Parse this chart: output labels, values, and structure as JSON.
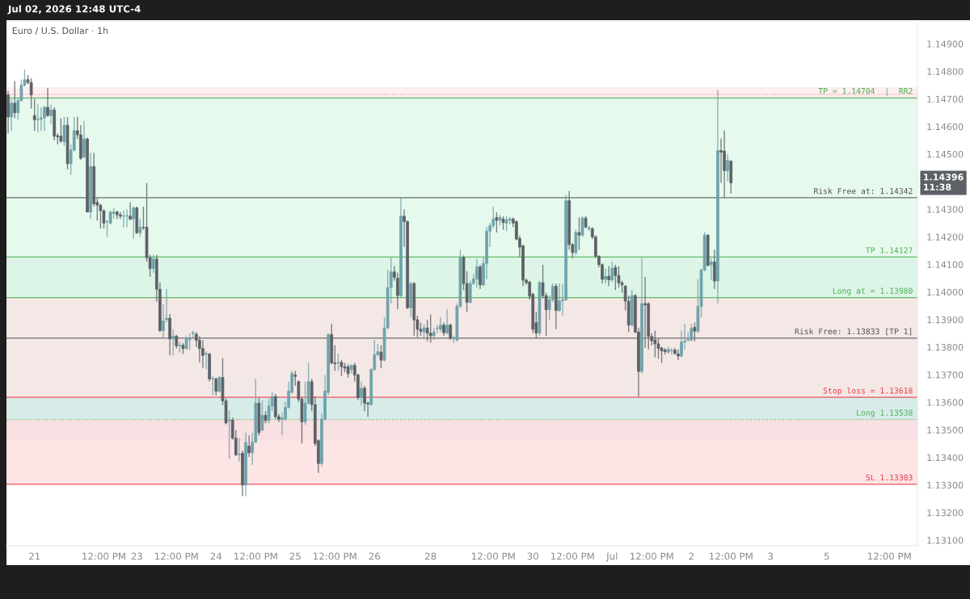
{
  "chart_data": {
    "type": "candlestick",
    "title": "Euro / U.S. Dollar · 1h",
    "annotations": [
      "Jul 02, 2026 12:48 UTC-4",
      "1.14396\n11:38"
    ],
    "categories": [
      null,
      null,
      null,
      null,
      null,
      null,
      null,
      null,
      "21",
      null,
      null,
      null,
      null,
      null,
      null,
      null,
      null,
      null,
      null,
      null,
      null,
      null,
      null,
      null,
      null,
      null,
      null,
      null,
      null,
      "12:00 PM",
      null,
      null,
      null,
      null,
      null,
      null,
      null,
      null,
      null,
      "23",
      null,
      null,
      null,
      null,
      null,
      null,
      null,
      null,
      null,
      null,
      null,
      "12:00 PM",
      null,
      null,
      null,
      null,
      null,
      null,
      null,
      null,
      null,
      null,
      null,
      "24",
      null,
      null,
      null,
      null,
      null,
      null,
      null,
      null,
      null,
      null,
      null,
      "12:00 PM",
      null,
      null,
      null,
      null,
      null,
      null,
      null,
      null,
      null,
      null,
      null,
      "25",
      null,
      null,
      null,
      null,
      null,
      null,
      null,
      null,
      null,
      null,
      null,
      "12:00 PM",
      null,
      null,
      null,
      null,
      null,
      null,
      null,
      null,
      null,
      null,
      null,
      "26",
      null,
      null,
      null,
      null,
      null,
      null,
      null,
      null,
      null,
      null,
      null,
      null,
      null,
      null,
      null,
      null,
      "28",
      null,
      null,
      null,
      null,
      null,
      null,
      null,
      null,
      null,
      null,
      null,
      null,
      null,
      null,
      null,
      null,
      null,
      null,
      "12:00 PM",
      null,
      null,
      null,
      null,
      null,
      null,
      null,
      null,
      null,
      null,
      null,
      "30",
      null,
      null,
      null,
      null,
      null,
      null,
      null,
      null,
      null,
      null,
      null,
      "12:00 PM",
      null,
      null,
      null,
      null,
      null,
      null,
      null,
      null,
      null,
      null,
      null,
      "Jul",
      null,
      null,
      null,
      null,
      null,
      null,
      null,
      null,
      null,
      null,
      null,
      "12:00 PM",
      null,
      null,
      null,
      null,
      null,
      null,
      null,
      null,
      null,
      null,
      null,
      "2",
      null,
      null,
      null,
      null,
      null,
      null,
      null,
      null,
      null,
      null,
      null,
      "12:00 PM",
      null,
      null,
      null,
      null,
      null,
      null,
      null,
      null,
      null,
      null,
      null,
      "3",
      null,
      null,
      null,
      null,
      null,
      null,
      null,
      null,
      null,
      null,
      null,
      null,
      null,
      null,
      null,
      null,
      "5",
      null,
      null,
      null,
      null,
      null,
      null,
      null,
      null,
      null,
      null,
      null,
      null,
      null,
      null,
      null,
      null,
      null,
      null,
      "12:00 PM",
      null,
      null,
      null,
      null,
      null,
      null,
      null,
      null
    ],
    "ohlc": [
      [
        1.14715,
        1.1473,
        1.14575,
        1.14635
      ],
      [
        1.14635,
        1.147,
        1.14585,
        1.14685
      ],
      [
        1.14685,
        1.14765,
        1.1463,
        1.1465
      ],
      [
        1.1465,
        1.14705,
        1.14625,
        1.14695
      ],
      [
        1.14695,
        1.1477,
        1.1469,
        1.1475
      ],
      [
        1.1475,
        1.14807,
        1.14745,
        1.1477
      ],
      [
        1.1477,
        1.14787,
        1.14753,
        1.1476
      ],
      [
        1.1476,
        1.14775,
        1.14665,
        1.14715
      ],
      [
        1.1464,
        1.147,
        1.14585,
        1.14625
      ],
      [
        1.14625,
        1.1468,
        1.1458,
        1.14627
      ],
      [
        1.14627,
        1.1467,
        1.14585,
        1.14632
      ],
      [
        1.14632,
        1.14675,
        1.14585,
        1.1467
      ],
      [
        1.1467,
        1.1474,
        1.14635,
        1.1464
      ],
      [
        1.1464,
        1.1468,
        1.1461,
        1.1466
      ],
      [
        1.1466,
        1.1467,
        1.1455,
        1.14565
      ],
      [
        1.14567,
        1.14575,
        1.14535,
        1.14563
      ],
      [
        1.14565,
        1.1463,
        1.1454,
        1.14547
      ],
      [
        1.14545,
        1.14635,
        1.1453,
        1.14605
      ],
      [
        1.14605,
        1.14635,
        1.14445,
        1.14465
      ],
      [
        1.14465,
        1.14535,
        1.14425,
        1.14515
      ],
      [
        1.14515,
        1.14635,
        1.1451,
        1.14585
      ],
      [
        1.14585,
        1.14635,
        1.14555,
        1.1457
      ],
      [
        1.1457,
        1.14605,
        1.1448,
        1.14485
      ],
      [
        1.1449,
        1.1462,
        1.14485,
        1.14555
      ],
      [
        1.14555,
        1.1456,
        1.1429,
        1.1429
      ],
      [
        1.1429,
        1.14505,
        1.14265,
        1.14455
      ],
      [
        1.14455,
        1.14505,
        1.1431,
        1.1432
      ],
      [
        1.14325,
        1.1434,
        1.1426,
        1.14315
      ],
      [
        1.14315,
        1.1432,
        1.1423,
        1.14295
      ],
      [
        1.14295,
        1.143,
        1.1423,
        1.1425
      ],
      [
        1.14255,
        1.1426,
        1.142,
        1.14257
      ],
      [
        1.1425,
        1.14295,
        1.14245,
        1.1429
      ],
      [
        1.14285,
        1.14305,
        1.14265,
        1.1429
      ],
      [
        1.1429,
        1.14295,
        1.14265,
        1.1428
      ],
      [
        1.1428,
        1.1429,
        1.14265,
        1.14275
      ],
      [
        1.14275,
        1.14295,
        1.14235,
        1.14276
      ],
      [
        1.14276,
        1.143,
        1.14235,
        1.14277
      ],
      [
        1.14275,
        1.14325,
        1.1426,
        1.14265
      ],
      [
        1.14265,
        1.1431,
        1.14195,
        1.14305
      ],
      [
        1.14305,
        1.1431,
        1.1421,
        1.14215
      ],
      [
        1.14215,
        1.14265,
        1.142,
        1.14235
      ],
      [
        1.14235,
        1.1431,
        1.14225,
        1.14233
      ],
      [
        1.14235,
        1.14395,
        1.1411,
        1.14125
      ],
      [
        1.14125,
        1.14135,
        1.14055,
        1.14085
      ],
      [
        1.14085,
        1.14135,
        1.1407,
        1.1412
      ],
      [
        1.1412,
        1.14135,
        1.13965,
        1.1401
      ],
      [
        1.1401,
        1.14035,
        1.13855,
        1.1386
      ],
      [
        1.1386,
        1.13955,
        1.13835,
        1.13895
      ],
      [
        1.139,
        1.1401,
        1.1389,
        1.13905
      ],
      [
        1.13905,
        1.1392,
        1.1377,
        1.1383
      ],
      [
        1.1383,
        1.13865,
        1.1377,
        1.1384
      ],
      [
        1.1384,
        1.13845,
        1.13795,
        1.13805
      ],
      [
        1.13805,
        1.1382,
        1.1378,
        1.13807
      ],
      [
        1.13807,
        1.13815,
        1.13775,
        1.13795
      ],
      [
        1.13795,
        1.1384,
        1.1379,
        1.1383
      ],
      [
        1.13827,
        1.1385,
        1.1379,
        1.13835
      ],
      [
        1.1385,
        1.1386,
        1.13835,
        1.13853
      ],
      [
        1.13847,
        1.13855,
        1.138,
        1.13825
      ],
      [
        1.13825,
        1.1384,
        1.13745,
        1.13795
      ],
      [
        1.13795,
        1.13825,
        1.13725,
        1.1377
      ],
      [
        1.13775,
        1.13785,
        1.1372,
        1.13777
      ],
      [
        1.13775,
        1.1378,
        1.13675,
        1.13685
      ],
      [
        1.13685,
        1.13695,
        1.13625,
        1.13687
      ],
      [
        1.13685,
        1.1369,
        1.13625,
        1.1364
      ],
      [
        1.1364,
        1.13695,
        1.13635,
        1.1369
      ],
      [
        1.1369,
        1.1376,
        1.1359,
        1.13605
      ],
      [
        1.13605,
        1.13615,
        1.1352,
        1.13525
      ],
      [
        1.13533,
        1.1357,
        1.13395,
        1.13537
      ],
      [
        1.13535,
        1.13545,
        1.13465,
        1.1347
      ],
      [
        1.1347,
        1.135,
        1.13405,
        1.1341
      ],
      [
        1.1341,
        1.1347,
        1.13385,
        1.13412
      ],
      [
        1.13415,
        1.13425,
        1.1326,
        1.133
      ],
      [
        1.133,
        1.1349,
        1.1326,
        1.13455
      ],
      [
        1.13441,
        1.1348,
        1.13402,
        1.13417
      ],
      [
        1.13417,
        1.1349,
        1.13373,
        1.13456
      ],
      [
        1.13456,
        1.13685,
        1.13451,
        1.13597
      ],
      [
        1.13597,
        1.13616,
        1.1348,
        1.1349
      ],
      [
        1.135,
        1.13607,
        1.13495,
        1.13553
      ],
      [
        1.13553,
        1.13568,
        1.13524,
        1.13534
      ],
      [
        1.13534,
        1.13612,
        1.13524,
        1.13587
      ],
      [
        1.13587,
        1.13636,
        1.13568,
        1.13621
      ],
      [
        1.13621,
        1.13631,
        1.13539,
        1.13548
      ],
      [
        1.13548,
        1.13558,
        1.13529,
        1.13539
      ],
      [
        1.13539,
        1.13563,
        1.1348,
        1.13543
      ],
      [
        1.13539,
        1.13602,
        1.13534,
        1.13582
      ],
      [
        1.13582,
        1.13675,
        1.13577,
        1.13641
      ],
      [
        1.13636,
        1.13714,
        1.13631,
        1.13704
      ],
      [
        1.13699,
        1.13714,
        1.1366,
        1.13694
      ],
      [
        1.13675,
        1.1368,
        1.13602,
        1.13612
      ],
      [
        1.13612,
        1.13617,
        1.13451,
        1.13529
      ],
      [
        1.13529,
        1.13675,
        1.13519,
        1.13597
      ],
      [
        1.13597,
        1.13743,
        1.13592,
        1.13675
      ],
      [
        1.13675,
        1.13685,
        1.13568,
        1.13592
      ],
      [
        1.13592,
        1.13621,
        1.13441,
        1.13451
      ],
      [
        1.13461,
        1.13466,
        1.13344,
        1.13378
      ],
      [
        1.13378,
        1.13558,
        1.13368,
        1.13539
      ],
      [
        1.13539,
        1.13699,
        1.13534,
        1.13641
      ],
      [
        1.13636,
        1.13851,
        1.13626,
        1.13846
      ],
      [
        1.13846,
        1.13885,
        1.13738,
        1.13743
      ],
      [
        1.13743,
        1.13807,
        1.13714,
        1.1374
      ],
      [
        1.13743,
        1.13777,
        1.13714,
        1.13745
      ],
      [
        1.13745,
        1.13753,
        1.13695,
        1.13729
      ],
      [
        1.13729,
        1.13743,
        1.13709,
        1.13724
      ],
      [
        1.13729,
        1.13738,
        1.1369,
        1.13704
      ],
      [
        1.13719,
        1.13738,
        1.13704,
        1.13734
      ],
      [
        1.13734,
        1.13743,
        1.13675,
        1.13699
      ],
      [
        1.13699,
        1.13704,
        1.13607,
        1.13617
      ],
      [
        1.13617,
        1.13675,
        1.13588,
        1.13651
      ],
      [
        1.13651,
        1.1366,
        1.13568,
        1.13597
      ],
      [
        1.13597,
        1.13602,
        1.13548,
        1.13594
      ],
      [
        1.13592,
        1.13724,
        1.13587,
        1.13719
      ],
      [
        1.13719,
        1.13826,
        1.13714,
        1.13773
      ],
      [
        1.13773,
        1.13812,
        1.13768,
        1.13784
      ],
      [
        1.13782,
        1.13807,
        1.13724,
        1.13753
      ],
      [
        1.13753,
        1.13909,
        1.13748,
        1.1387
      ],
      [
        1.1387,
        1.1408,
        1.13865,
        1.14016
      ],
      [
        1.14016,
        1.14124,
        1.13958,
        1.14073
      ],
      [
        1.14073,
        1.14094,
        1.14041,
        1.14053
      ],
      [
        1.1405,
        1.1407,
        1.13938,
        1.13987
      ],
      [
        1.13987,
        1.14343,
        1.13982,
        1.14275
      ],
      [
        1.14275,
        1.14299,
        1.14163,
        1.14255
      ],
      [
        1.14255,
        1.1426,
        1.13938,
        1.13943
      ],
      [
        1.13943,
        1.14036,
        1.13909,
        1.14031
      ],
      [
        1.14031,
        1.14036,
        1.13841,
        1.13899
      ],
      [
        1.13899,
        1.13914,
        1.13836,
        1.13865
      ],
      [
        1.13865,
        1.13889,
        1.13841,
        1.13858
      ],
      [
        1.13855,
        1.13884,
        1.13831,
        1.1387
      ],
      [
        1.1387,
        1.13899,
        1.13821,
        1.13851
      ],
      [
        1.13851,
        1.13919,
        1.13816,
        1.13841
      ],
      [
        1.13841,
        1.1387,
        1.13826,
        1.13855
      ],
      [
        1.13868,
        1.1388,
        1.13851,
        1.1387
      ],
      [
        1.13865,
        1.13909,
        1.13855,
        1.1388
      ],
      [
        1.1388,
        1.1389,
        1.13841,
        1.13852
      ],
      [
        1.13852,
        1.13938,
        1.13846,
        1.1388
      ],
      [
        1.1388,
        1.13885,
        1.13826,
        1.13833
      ],
      [
        1.13831,
        1.13841,
        1.13816,
        1.13833
      ],
      [
        1.13826,
        1.13958,
        1.13821,
        1.13948
      ],
      [
        1.13948,
        1.14153,
        1.13943,
        1.14125
      ],
      [
        1.14125,
        1.14133,
        1.14007,
        1.14031
      ],
      [
        1.14031,
        1.14075,
        1.13929,
        1.13963
      ],
      [
        1.13963,
        1.14041,
        1.13958,
        1.14031
      ],
      [
        1.14031,
        1.14065,
        1.14026,
        1.14047
      ],
      [
        1.14047,
        1.14119,
        1.14016,
        1.14091
      ],
      [
        1.14091,
        1.14099,
        1.14011,
        1.14026
      ],
      [
        1.14026,
        1.14124,
        1.14021,
        1.14104
      ],
      [
        1.14104,
        1.14236,
        1.14046,
        1.14221
      ],
      [
        1.14221,
        1.1425,
        1.14163,
        1.14241
      ],
      [
        1.14241,
        1.14309,
        1.14231,
        1.14265
      ],
      [
        1.1427,
        1.14289,
        1.14216,
        1.1426
      ],
      [
        1.1426,
        1.1428,
        1.14241,
        1.1427
      ],
      [
        1.14265,
        1.14275,
        1.14226,
        1.14252
      ],
      [
        1.1425,
        1.14275,
        1.14221,
        1.14262
      ],
      [
        1.1426,
        1.14272,
        1.14245,
        1.14265
      ],
      [
        1.14265,
        1.1427,
        1.14236,
        1.1425
      ],
      [
        1.14255,
        1.1426,
        1.14187,
        1.14192
      ],
      [
        1.14194,
        1.14206,
        1.14128,
        1.14163
      ],
      [
        1.14167,
        1.14172,
        1.14021,
        1.14043
      ],
      [
        1.14043,
        1.1405,
        1.14026,
        1.14034
      ],
      [
        1.14036,
        1.14041,
        1.13972,
        1.13985
      ],
      [
        1.13992,
        1.13997,
        1.13851,
        1.13865
      ],
      [
        1.13889,
        1.13929,
        1.13831,
        1.13851
      ],
      [
        1.13851,
        1.14041,
        1.13841,
        1.14034
      ],
      [
        1.14034,
        1.14099,
        1.13977,
        1.13987
      ],
      [
        1.13987,
        1.13997,
        1.13841,
        1.13936
      ],
      [
        1.13936,
        1.13987,
        1.13899,
        1.13972
      ],
      [
        1.13972,
        1.14031,
        1.13963,
        1.14021
      ],
      [
        1.14021,
        1.14031,
        1.13865,
        1.13933
      ],
      [
        1.13933,
        1.14031,
        1.13929,
        1.13968
      ],
      [
        1.13968,
        1.14031,
        1.13914,
        1.13972
      ],
      [
        1.13972,
        1.14351,
        1.13968,
        1.14331
      ],
      [
        1.14331,
        1.14367,
        1.14153,
        1.14172
      ],
      [
        1.14172,
        1.14177,
        1.14124,
        1.14143
      ],
      [
        1.14143,
        1.14226,
        1.14133,
        1.14216
      ],
      [
        1.14216,
        1.1427,
        1.14153,
        1.14206
      ],
      [
        1.14206,
        1.14275,
        1.14201,
        1.14268
      ],
      [
        1.14268,
        1.14275,
        1.14231,
        1.14236
      ],
      [
        1.14229,
        1.14241,
        1.14221,
        1.14233
      ],
      [
        1.14229,
        1.14236,
        1.14192,
        1.142
      ],
      [
        1.142,
        1.14206,
        1.14124,
        1.1413
      ],
      [
        1.1413,
        1.14133,
        1.14089,
        1.14099
      ],
      [
        1.14099,
        1.14104,
        1.14031,
        1.14046
      ],
      [
        1.14046,
        1.14085,
        1.14031,
        1.14057
      ],
      [
        1.14057,
        1.14094,
        1.14021,
        1.14044
      ],
      [
        1.14044,
        1.14109,
        1.14036,
        1.14086
      ],
      [
        1.14089,
        1.14099,
        1.14007,
        1.1406
      ],
      [
        1.1406,
        1.14094,
        1.14016,
        1.14033
      ],
      [
        1.14033,
        1.14041,
        1.13997,
        1.14026
      ],
      [
        1.14021,
        1.14026,
        1.13933,
        1.13967
      ],
      [
        1.13967,
        1.13987,
        1.13855,
        1.1388
      ],
      [
        1.1388,
        1.14007,
        1.13875,
        1.13987
      ],
      [
        1.13987,
        1.13992,
        1.13851,
        1.13855
      ],
      [
        1.13855,
        1.1387,
        1.13621,
        1.13712
      ],
      [
        1.13712,
        1.14124,
        1.13704,
        1.13958
      ],
      [
        1.13958,
        1.14055,
        1.13797,
        1.13953
      ],
      [
        1.13958,
        1.13963,
        1.13792,
        1.13839
      ],
      [
        1.13839,
        1.13851,
        1.13807,
        1.13823
      ],
      [
        1.13826,
        1.1386,
        1.13763,
        1.13812
      ],
      [
        1.13812,
        1.13831,
        1.13758,
        1.13795
      ],
      [
        1.13797,
        1.13802,
        1.13743,
        1.13787
      ],
      [
        1.1379,
        1.13797,
        1.13773,
        1.13784
      ],
      [
        1.13782,
        1.13802,
        1.13777,
        1.13792
      ],
      [
        1.13787,
        1.13797,
        1.13773,
        1.13788
      ],
      [
        1.1379,
        1.13797,
        1.13773,
        1.13777
      ],
      [
        1.13775,
        1.13792,
        1.13753,
        1.13768
      ],
      [
        1.13768,
        1.1386,
        1.13763,
        1.13819
      ],
      [
        1.13819,
        1.13885,
        1.13792,
        1.13823
      ],
      [
        1.13826,
        1.13855,
        1.13821,
        1.13827
      ],
      [
        1.13826,
        1.13885,
        1.13821,
        1.13868
      ],
      [
        1.13872,
        1.1389,
        1.13821,
        1.13858
      ],
      [
        1.13858,
        1.14046,
        1.13851,
        1.13948
      ],
      [
        1.13948,
        1.14085,
        1.13909,
        1.1408
      ],
      [
        1.1408,
        1.14216,
        1.14075,
        1.14206
      ],
      [
        1.14206,
        1.14211,
        1.14094,
        1.14096
      ],
      [
        1.14099,
        1.14123,
        1.14045,
        1.14109
      ],
      [
        1.14109,
        1.14153,
        1.14011,
        1.1404
      ],
      [
        1.1404,
        1.14733,
        1.13958,
        1.14513
      ],
      [
        1.14513,
        1.14557,
        1.14396,
        1.14507
      ],
      [
        1.14511,
        1.14586,
        1.14343,
        1.1444
      ],
      [
        1.1444,
        1.14499,
        1.14401,
        1.14477
      ],
      [
        1.14474,
        1.14479,
        1.14357,
        1.14396
      ],
      null,
      null,
      null,
      null,
      null,
      null,
      null,
      null,
      null,
      null,
      null,
      null,
      null,
      null,
      null,
      null,
      null,
      null,
      null,
      null,
      null,
      null,
      null,
      null,
      null,
      null,
      null,
      null,
      null,
      null,
      null,
      null,
      null,
      null,
      null,
      null,
      null,
      null,
      null,
      null,
      null,
      null,
      null,
      null,
      null,
      null,
      null,
      null,
      null,
      null,
      null,
      null,
      null,
      null,
      null,
      null
    ],
    "colors": [
      "#5d6166",
      "#6fa3ab",
      "#5d6166",
      "#6fa3ab",
      "#6fa3ab",
      "#6fa3ab",
      "#5d6166",
      "#5d6166",
      "#5d6166",
      "#6fa3ab",
      "#6fa3ab",
      "#6fa3ab",
      "#5d6166",
      "#6fa3ab",
      "#5d6166",
      "#5d6166",
      "#5d6166",
      "#6fa3ab",
      "#5d6166",
      "#6fa3ab",
      "#6fa3ab",
      "#5d6166",
      "#5d6166",
      "#6fa3ab",
      "#5d6166",
      "#6fa3ab",
      "#5d6166",
      "#5d6166",
      "#5d6166",
      "#5d6166",
      "#6fa3ab",
      "#6fa3ab",
      "#6fa3ab",
      "#5d6166",
      "#5d6166",
      "#6fa3ab",
      "#6fa3ab",
      "#5d6166",
      "#6fa3ab",
      "#5d6166",
      "#6fa3ab",
      "#5d6166",
      "#5d6166",
      "#5d6166",
      "#6fa3ab",
      "#5d6166",
      "#5d6166",
      "#6fa3ab",
      "#6fa3ab",
      "#5d6166",
      "#6fa3ab",
      "#5d6166",
      "#6fa3ab",
      "#5d6166",
      "#6fa3ab",
      "#6fa3ab",
      "#6fa3ab",
      "#5d6166",
      "#5d6166",
      "#5d6166",
      "#6fa3ab",
      "#5d6166",
      "#6fa3ab",
      "#5d6166",
      "#6fa3ab",
      "#5d6166",
      "#5d6166",
      "#6fa3ab",
      "#5d6166",
      "#5d6166",
      "#6fa3ab",
      "#5d6166",
      "#6fa3ab",
      "#5d6166",
      "#6fa3ab",
      "#6fa3ab",
      "#5d6166",
      "#6fa3ab",
      "#5d6166",
      "#6fa3ab",
      "#6fa3ab",
      "#5d6166",
      "#5d6166",
      "#6fa3ab",
      "#6fa3ab",
      "#6fa3ab",
      "#6fa3ab",
      "#5d6166",
      "#5d6166",
      "#5d6166",
      "#6fa3ab",
      "#6fa3ab",
      "#5d6166",
      "#5d6166",
      "#5d6166",
      "#6fa3ab",
      "#6fa3ab",
      "#6fa3ab",
      "#5d6166",
      "#5d6166",
      "#6fa3ab",
      "#5d6166",
      "#5d6166",
      "#5d6166",
      "#6fa3ab",
      "#5d6166",
      "#5d6166",
      "#6fa3ab",
      "#5d6166",
      "#5d6166",
      "#6fa3ab",
      "#6fa3ab",
      "#6fa3ab",
      "#5d6166",
      "#6fa3ab",
      "#6fa3ab",
      "#6fa3ab",
      "#5d6166",
      "#5d6166",
      "#6fa3ab",
      "#5d6166",
      "#5d6166",
      "#6fa3ab",
      "#5d6166",
      "#5d6166",
      "#5d6166",
      "#6fa3ab",
      "#5d6166",
      "#5d6166",
      "#6fa3ab",
      "#6fa3ab",
      "#6fa3ab",
      "#5d6166",
      "#6fa3ab",
      "#5d6166",
      "#6fa3ab",
      "#6fa3ab",
      "#6fa3ab",
      "#5d6166",
      "#5d6166",
      "#6fa3ab",
      "#6fa3ab",
      "#6fa3ab",
      "#5d6166",
      "#6fa3ab",
      "#6fa3ab",
      "#6fa3ab",
      "#6fa3ab",
      "#5d6166",
      "#6fa3ab",
      "#5d6166",
      "#6fa3ab",
      "#6fa3ab",
      "#5d6166",
      "#5d6166",
      "#5d6166",
      "#5d6166",
      "#5d6166",
      "#5d6166",
      "#5d6166",
      "#5d6166",
      "#6fa3ab",
      "#5d6166",
      "#5d6166",
      "#6fa3ab",
      "#6fa3ab",
      "#5d6166",
      "#6fa3ab",
      "#6fa3ab",
      "#6fa3ab",
      "#5d6166",
      "#5d6166",
      "#6fa3ab",
      "#5d6166",
      "#6fa3ab",
      "#5d6166",
      "#6fa3ab",
      "#5d6166",
      "#5d6166",
      "#5d6166",
      "#5d6166",
      "#6fa3ab",
      "#5d6166",
      "#6fa3ab",
      "#5d6166",
      "#5d6166",
      "#5d6166",
      "#5d6166",
      "#5d6166",
      "#6fa3ab",
      "#5d6166",
      "#5d6166",
      "#6fa3ab",
      "#5d6166",
      "#5d6166",
      "#5d6166",
      "#5d6166",
      "#5d6166",
      "#5d6166",
      "#5d6166",
      "#6fa3ab",
      "#6fa3ab",
      "#5d6166",
      "#5d6166",
      "#6fa3ab",
      "#6fa3ab",
      "#6fa3ab",
      "#6fa3ab",
      "#5d6166",
      "#6fa3ab",
      "#6fa3ab",
      "#6fa3ab",
      "#5d6166",
      "#6fa3ab",
      "#5d6166",
      "#6fa3ab",
      "#5d6166",
      "#5d6166",
      "#6fa3ab",
      "#5d6166",
      null,
      null,
      null,
      null,
      null,
      null,
      null,
      null,
      null,
      null,
      null,
      null,
      null,
      null,
      null,
      null,
      null,
      null,
      null,
      null,
      null,
      null,
      null,
      null,
      null,
      null,
      null,
      null,
      null,
      null,
      null,
      null,
      null,
      null,
      null,
      null,
      null,
      null,
      null,
      null,
      null,
      null,
      null,
      null,
      null,
      null,
      null,
      null,
      null,
      null,
      null,
      null,
      null,
      null,
      null,
      null
    ],
    "ylim": [
      1.1308,
      1.1498
    ],
    "yticks": [
      {
        "value": 1.131,
        "label": "1.13100"
      },
      {
        "value": 1.132,
        "label": "1.13200"
      },
      {
        "value": 1.133,
        "label": "1.13300"
      },
      {
        "value": 1.134,
        "label": "1.13400"
      },
      {
        "value": 1.135,
        "label": "1.13500"
      },
      {
        "value": 1.136,
        "label": "1.13600"
      },
      {
        "value": 1.137,
        "label": "1.13700"
      },
      {
        "value": 1.138,
        "label": "1.13800"
      },
      {
        "value": 1.139,
        "label": "1.13900"
      },
      {
        "value": 1.14,
        "label": "1.14000"
      },
      {
        "value": 1.141,
        "label": "1.14100"
      },
      {
        "value": 1.142,
        "label": "1.14200"
      },
      {
        "value": 1.143,
        "label": "1.14300"
      },
      {
        "value": 1.145,
        "label": "1.14500"
      },
      {
        "value": 1.146,
        "label": "1.14600"
      },
      {
        "value": 1.147,
        "label": "1.14700"
      },
      {
        "value": 1.148,
        "label": "1.14800"
      },
      {
        "value": 1.149,
        "label": "1.14900"
      }
    ],
    "bands": [
      {
        "axis": "y",
        "from": 1.14694,
        "to": 1.14743,
        "color": "#fde7ea"
      },
      {
        "axis": "y",
        "from": 1.1346,
        "to": 1.13623,
        "color": "#e8ecf5"
      },
      {
        "axis": "y",
        "from": 1.13538,
        "to": 1.14127,
        "color": "#cdeae2"
      },
      {
        "axis": "y",
        "from": 1.13303,
        "to": 1.13538,
        "color": "#fcd9da"
      },
      {
        "axis": "y",
        "from": 1.1398,
        "to": 1.14704,
        "color": "#dcf7e6"
      },
      {
        "axis": "y",
        "from": 1.13618,
        "to": 1.1398,
        "color": "#fde4e4"
      }
    ],
    "ref_lines": [
      {
        "axis": "y",
        "value": 1.14717,
        "color": "#f28b95",
        "line_style": "dotted"
      },
      {
        "axis": "y",
        "value": 1.14704,
        "label": "TP = 1.14704  |  RR2",
        "color": "#4caf50",
        "line_style": "solid"
      },
      {
        "axis": "y",
        "value": 1.14342,
        "label": "Risk Free at: 1.14342",
        "color": "#555555",
        "line_style": "solid"
      },
      {
        "axis": "y",
        "value": 1.14127,
        "label": "TP 1.14127",
        "color": "#4caf50",
        "line_style": "solid"
      },
      {
        "axis": "y",
        "value": 1.1398,
        "label": "Long at = 1.13980",
        "color": "#4caf50",
        "line_style": "solid"
      },
      {
        "axis": "y",
        "value": 1.13833,
        "label": "Risk Free: 1.13833 [TP 1]",
        "color": "#555555",
        "line_style": "solid"
      },
      {
        "axis": "y",
        "value": 1.13618,
        "label": "Stop loss = 1.13618",
        "color": "#f23645",
        "line_style": "solid"
      },
      {
        "axis": "y",
        "value": 1.13538,
        "label": "Long 1.13538",
        "color": "#4caf50",
        "line_style": "dotted"
      },
      {
        "axis": "y",
        "value": 1.13303,
        "label": "SL 1.13303",
        "color": "#f23645",
        "line_style": "solid"
      }
    ]
  }
}
